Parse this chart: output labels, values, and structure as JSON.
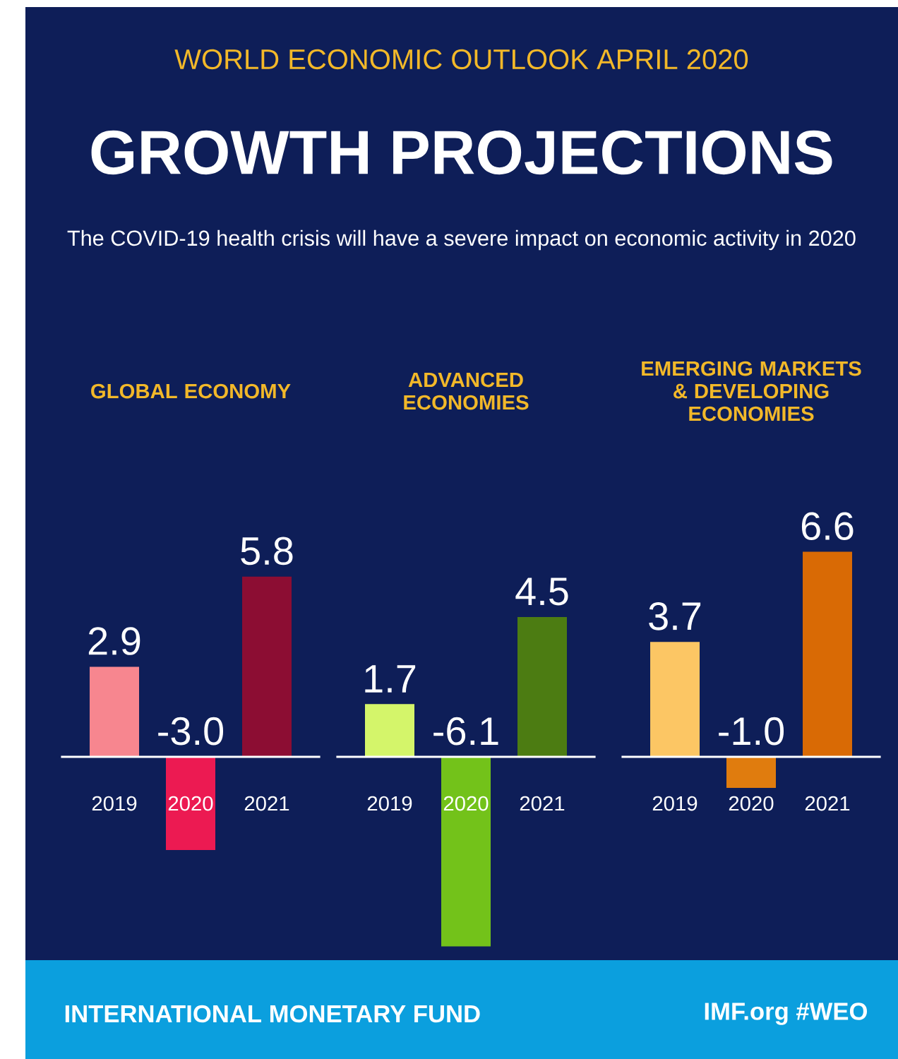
{
  "chart_data": [
    {
      "type": "other",
      "title": "GROWTH PROJECTIONS",
      "subtitle": "The COVID-19 health crisis will have a severe impact on economic activity in 2020",
      "annotations": [
        "WORLD ECONOMIC OUTLOOK  APRIL 2020",
        "INTERNATIONAL MONETARY FUND",
        "IMF.org  #WEO"
      ]
    },
    {
      "type": "bar",
      "title": "GLOBAL ECONOMY",
      "categories": [
        "2019",
        "2020",
        "2021"
      ],
      "values": [
        2.9,
        -3.0,
        5.8
      ],
      "colors": [
        "#f7868f",
        "#ec1a52",
        "#8c0d33"
      ],
      "value_labels": [
        "2.9",
        "-3.0",
        "5.8"
      ]
    },
    {
      "type": "bar",
      "title": "ADVANCED ECONOMIES",
      "categories": [
        "2019",
        "2020",
        "2021"
      ],
      "values": [
        1.7,
        -6.1,
        4.5
      ],
      "colors": [
        "#d4f56a",
        "#73c21a",
        "#4c7c12"
      ],
      "value_labels": [
        "1.7",
        "-6.1",
        "4.5"
      ]
    },
    {
      "type": "bar",
      "title": "EMERGING MARKETS & DEVELOPING ECONOMIES",
      "categories": [
        "2019",
        "2020",
        "2021"
      ],
      "values": [
        3.7,
        -1.0,
        6.6
      ],
      "colors": [
        "#fcc664",
        "#e07c0e",
        "#d96a05"
      ],
      "value_labels": [
        "3.7",
        "-1.0",
        "6.6"
      ]
    }
  ]
}
